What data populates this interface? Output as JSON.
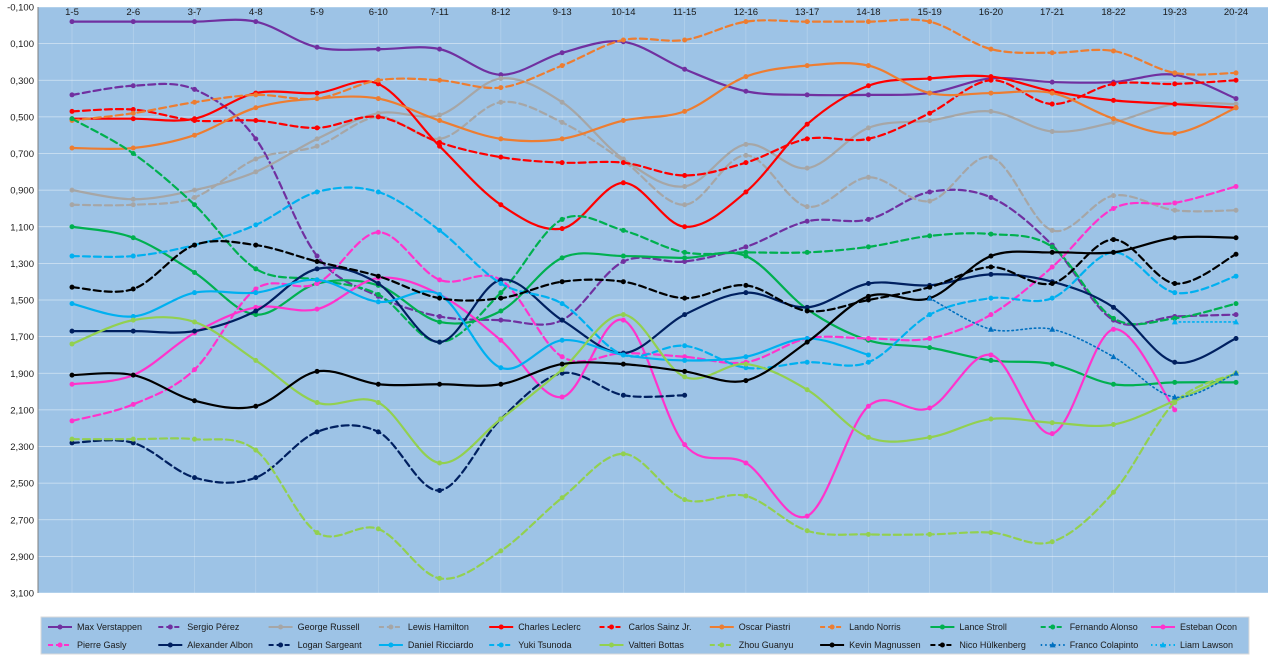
{
  "chart_data": {
    "type": "line",
    "title": "",
    "xlabel": "",
    "ylabel": "",
    "y_inverted": true,
    "ylim": [
      -0.1,
      3.1
    ],
    "y_ticks": [
      "-0,100",
      "0,100",
      "0,300",
      "0,500",
      "0,700",
      "0,900",
      "1,100",
      "1,300",
      "1,500",
      "1,700",
      "1,900",
      "2,100",
      "2,300",
      "2,500",
      "2,700",
      "2,900",
      "3,100"
    ],
    "y_tick_values": [
      -0.1,
      0.1,
      0.3,
      0.5,
      0.7,
      0.9,
      1.1,
      1.3,
      1.5,
      1.7,
      1.9,
      2.1,
      2.3,
      2.5,
      2.7,
      2.9,
      3.1
    ],
    "categories": [
      "1-5",
      "2-6",
      "3-7",
      "4-8",
      "5-9",
      "6-10",
      "7-11",
      "8-12",
      "9-13",
      "10-14",
      "11-15",
      "12-16",
      "13-17",
      "14-18",
      "15-19",
      "16-20",
      "17-21",
      "18-22",
      "19-23",
      "20-24"
    ],
    "plot_background": "#9dc3e6",
    "gridlines": true,
    "legend_position": "bottom",
    "series": [
      {
        "name": "Max Verstappen",
        "color": "#7030a0",
        "dash": "solid",
        "marker": "circle",
        "values": [
          -0.02,
          -0.02,
          -0.02,
          -0.02,
          0.12,
          0.13,
          0.13,
          0.27,
          0.15,
          0.09,
          0.24,
          0.36,
          0.38,
          0.38,
          0.37,
          0.29,
          0.31,
          0.31,
          0.27,
          0.4
        ]
      },
      {
        "name": "Sergio Pérez",
        "color": "#7030a0",
        "dash": "dash",
        "marker": "circle",
        "values": [
          0.38,
          0.33,
          0.35,
          0.62,
          1.26,
          1.48,
          1.59,
          1.61,
          1.61,
          1.29,
          1.29,
          1.21,
          1.07,
          1.06,
          0.91,
          0.94,
          1.2,
          1.61,
          1.59,
          1.58
        ]
      },
      {
        "name": "George Russell",
        "color": "#a6a6a6",
        "dash": "solid",
        "marker": "circle",
        "values": [
          0.9,
          0.95,
          0.9,
          0.8,
          0.62,
          0.48,
          0.49,
          0.29,
          0.42,
          0.73,
          0.88,
          0.65,
          0.78,
          0.56,
          0.52,
          0.47,
          0.58,
          0.53,
          0.43,
          0.43
        ]
      },
      {
        "name": "Lewis Hamilton",
        "color": "#a6a6a6",
        "dash": "dash",
        "marker": "circle",
        "values": [
          0.98,
          0.98,
          0.94,
          0.73,
          0.66,
          0.5,
          0.62,
          0.42,
          0.53,
          0.74,
          0.98,
          0.71,
          0.99,
          0.83,
          0.96,
          0.72,
          1.12,
          0.93,
          1.01,
          1.01
        ]
      },
      {
        "name": "Charles Leclerc",
        "color": "#ff0000",
        "dash": "solid",
        "marker": "circle",
        "values": [
          0.51,
          0.51,
          0.51,
          0.37,
          0.37,
          0.32,
          0.66,
          0.98,
          1.11,
          0.86,
          1.1,
          0.91,
          0.54,
          0.33,
          0.29,
          0.28,
          0.36,
          0.41,
          0.43,
          0.45
        ]
      },
      {
        "name": "Carlos Sainz Jr.",
        "color": "#ff0000",
        "dash": "dash",
        "marker": "circle",
        "values": [
          0.47,
          0.46,
          0.52,
          0.52,
          0.56,
          0.5,
          0.64,
          0.72,
          0.75,
          0.75,
          0.82,
          0.75,
          0.62,
          0.62,
          0.48,
          0.3,
          0.43,
          0.32,
          0.32,
          0.3
        ]
      },
      {
        "name": "Oscar Piastri",
        "color": "#ed7d31",
        "dash": "solid",
        "marker": "circle",
        "values": [
          0.67,
          0.67,
          0.6,
          0.45,
          0.4,
          0.4,
          0.52,
          0.62,
          0.62,
          0.52,
          0.47,
          0.28,
          0.22,
          0.22,
          0.37,
          0.37,
          0.37,
          0.51,
          0.59,
          0.45
        ]
      },
      {
        "name": "Lando Norris",
        "color": "#ed7d31",
        "dash": "dash",
        "marker": "circle",
        "values": [
          0.52,
          0.48,
          0.42,
          0.38,
          0.4,
          0.3,
          0.3,
          0.34,
          0.22,
          0.08,
          0.08,
          -0.02,
          -0.02,
          -0.02,
          -0.02,
          0.13,
          0.15,
          0.14,
          0.26,
          0.26
        ]
      },
      {
        "name": "Lance Stroll",
        "color": "#00b050",
        "dash": "solid",
        "marker": "circle",
        "values": [
          1.1,
          1.16,
          1.35,
          1.58,
          1.41,
          1.42,
          1.62,
          1.56,
          1.27,
          1.26,
          1.27,
          1.26,
          1.55,
          1.72,
          1.76,
          1.83,
          1.85,
          1.96,
          1.95,
          1.95
        ]
      },
      {
        "name": "Fernando Alonso",
        "color": "#00b050",
        "dash": "dash",
        "marker": "circle",
        "values": [
          0.51,
          0.7,
          0.98,
          1.33,
          1.39,
          1.47,
          1.73,
          1.46,
          1.06,
          1.12,
          1.24,
          1.24,
          1.24,
          1.21,
          1.15,
          1.14,
          1.21,
          1.6,
          1.6,
          1.52
        ]
      },
      {
        "name": "Esteban Ocon",
        "color": "#ff33cc",
        "dash": "solid",
        "marker": "circle",
        "values": [
          1.96,
          1.91,
          1.68,
          1.54,
          1.55,
          1.38,
          1.47,
          1.72,
          2.03,
          1.61,
          2.29,
          2.39,
          2.68,
          2.08,
          2.09,
          1.8,
          2.23,
          1.66,
          2.1,
          null
        ]
      },
      {
        "name": "Pierre Gasly",
        "color": "#ff33cc",
        "dash": "dash",
        "marker": "circle",
        "values": [
          2.16,
          2.07,
          1.88,
          1.44,
          1.41,
          1.13,
          1.39,
          1.39,
          1.81,
          1.79,
          1.81,
          1.84,
          1.71,
          1.71,
          1.71,
          1.58,
          1.32,
          1.0,
          0.97,
          0.88
        ]
      },
      {
        "name": "Alexander Albon",
        "color": "#002060",
        "dash": "solid",
        "marker": "circle",
        "values": [
          1.67,
          1.67,
          1.67,
          1.56,
          1.33,
          1.41,
          1.73,
          1.39,
          1.61,
          1.79,
          1.58,
          1.46,
          1.54,
          1.41,
          1.42,
          1.36,
          1.4,
          1.54,
          1.84,
          1.71
        ]
      },
      {
        "name": "Logan Sargeant",
        "color": "#002060",
        "dash": "dash",
        "marker": "circle",
        "values": [
          2.28,
          2.28,
          2.47,
          2.47,
          2.22,
          2.22,
          2.54,
          2.15,
          1.9,
          2.02,
          2.02,
          null,
          null,
          null,
          null,
          null,
          null,
          null,
          null,
          null
        ]
      },
      {
        "name": "Daniel Ricciardo",
        "color": "#00b0f0",
        "dash": "solid",
        "marker": "circle",
        "values": [
          1.52,
          1.59,
          1.46,
          1.46,
          1.39,
          1.51,
          1.47,
          1.87,
          1.72,
          1.8,
          1.83,
          1.81,
          1.71,
          1.8,
          null,
          null,
          null,
          null,
          null,
          null
        ]
      },
      {
        "name": "Yuki Tsunoda",
        "color": "#00b0f0",
        "dash": "dash",
        "marker": "circle",
        "values": [
          1.26,
          1.26,
          1.2,
          1.09,
          0.91,
          0.91,
          1.12,
          1.41,
          1.52,
          1.8,
          1.75,
          1.87,
          1.84,
          1.84,
          1.58,
          1.49,
          1.49,
          1.24,
          1.46,
          1.37
        ]
      },
      {
        "name": "Valtteri Bottas",
        "color": "#92d050",
        "dash": "solid",
        "marker": "circle",
        "values": [
          1.74,
          1.61,
          1.62,
          1.83,
          2.06,
          2.06,
          2.39,
          2.15,
          1.88,
          1.58,
          1.92,
          1.85,
          1.99,
          2.25,
          2.25,
          2.15,
          2.17,
          2.18,
          2.05,
          1.9
        ]
      },
      {
        "name": "Zhou Guanyu",
        "color": "#92d050",
        "dash": "dash",
        "marker": "circle",
        "values": [
          2.26,
          2.26,
          2.26,
          2.32,
          2.77,
          2.75,
          3.02,
          2.87,
          2.58,
          2.34,
          2.59,
          2.57,
          2.76,
          2.78,
          2.78,
          2.77,
          2.82,
          2.55,
          2.06,
          1.9
        ]
      },
      {
        "name": "Kevin Magnussen",
        "color": "#000000",
        "dash": "solid",
        "marker": "circle",
        "values": [
          1.91,
          1.91,
          2.05,
          2.08,
          1.89,
          1.96,
          1.96,
          1.96,
          1.85,
          1.85,
          1.89,
          1.94,
          1.73,
          1.48,
          1.49,
          1.26,
          1.24,
          1.24,
          1.16,
          1.16
        ]
      },
      {
        "name": "Nico Hülkenberg",
        "color": "#000000",
        "dash": "dash",
        "marker": "circle",
        "values": [
          1.43,
          1.44,
          1.2,
          1.2,
          1.29,
          1.37,
          1.49,
          1.49,
          1.4,
          1.4,
          1.49,
          1.42,
          1.56,
          1.5,
          1.43,
          1.32,
          1.41,
          1.17,
          1.41,
          1.25
        ]
      },
      {
        "name": "Franco Colapinto",
        "color": "#0070c0",
        "dash": "dot",
        "marker": "triangle",
        "values": [
          null,
          null,
          null,
          null,
          null,
          null,
          null,
          null,
          null,
          null,
          null,
          null,
          null,
          null,
          1.49,
          1.66,
          1.66,
          1.81,
          2.03,
          1.9
        ]
      },
      {
        "name": "Liam Lawson",
        "color": "#00b0f0",
        "dash": "dot",
        "marker": "triangle",
        "values": [
          null,
          null,
          null,
          null,
          null,
          null,
          null,
          null,
          null,
          null,
          null,
          null,
          null,
          null,
          null,
          null,
          null,
          null,
          1.62,
          1.62
        ]
      }
    ]
  }
}
